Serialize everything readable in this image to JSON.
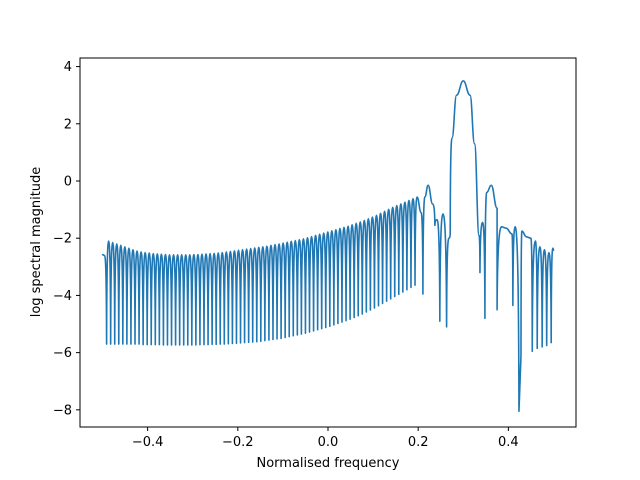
{
  "chart_data": {
    "type": "line",
    "title": "",
    "xlabel": "Normalised frequency",
    "ylabel": "log spectral magnitude",
    "xlim": [
      -0.55,
      0.55
    ],
    "ylim": [
      -8.6,
      4.3
    ],
    "grid": false,
    "x_ticks": [
      -0.4,
      -0.2,
      0.0,
      0.2,
      0.4
    ],
    "x_tick_labels": [
      "−0.4",
      "−0.2",
      "0.0",
      "0.2",
      "0.4"
    ],
    "y_ticks": [
      -8,
      -6,
      -4,
      -2,
      0,
      2,
      4
    ],
    "y_tick_labels": [
      "−8",
      "−6",
      "−4",
      "−2",
      "0",
      "2",
      "4"
    ],
    "series": [
      {
        "color": "#1f77b4",
        "x_range": [
          -0.5,
          0.5
        ],
        "peaks_x": [
          -0.4955,
          -0.4865,
          -0.4775,
          -0.4685,
          -0.4595,
          -0.4505,
          -0.4415,
          -0.4325,
          -0.4235,
          -0.4145,
          -0.4055,
          -0.3965,
          -0.3875,
          -0.3785,
          -0.3695,
          -0.3605,
          -0.3515,
          -0.3425,
          -0.3335,
          -0.3245,
          -0.3155,
          -0.3065,
          -0.2975,
          -0.2885,
          -0.2795,
          -0.2705,
          -0.2615,
          -0.2525,
          -0.2435,
          -0.2345,
          -0.2255,
          -0.2165,
          -0.2075,
          -0.1985,
          -0.1895,
          -0.1805,
          -0.1715,
          -0.1625,
          -0.1535,
          -0.1445,
          -0.1355,
          -0.1265,
          -0.1175,
          -0.1085,
          -0.0995,
          -0.0905,
          -0.0815,
          -0.0725,
          -0.0635,
          -0.0545,
          -0.0455,
          -0.0365,
          -0.0275,
          -0.0185,
          -0.0095,
          -0.0005,
          0.0085,
          0.0175,
          0.0265,
          0.0355,
          0.0445,
          0.0535,
          0.0625,
          0.0715,
          0.0805,
          0.0895,
          0.0985,
          0.1075,
          0.1165,
          0.1255,
          0.1345,
          0.1435,
          0.1525,
          0.1615,
          0.1705,
          0.1795,
          0.1885,
          0.1975,
          0.2065,
          0.215,
          0.222,
          0.232,
          0.242,
          0.255,
          0.268,
          0.275,
          0.285,
          0.3,
          0.315,
          0.325,
          0.335,
          0.343,
          0.352,
          0.362,
          0.375,
          0.385,
          0.395,
          0.408,
          0.415,
          0.43,
          0.44,
          0.45,
          0.46,
          0.47,
          0.48,
          0.49,
          0.4985
        ],
        "peaks_y": [
          -2.6,
          -2.1,
          -2.15,
          -2.2,
          -2.25,
          -2.3,
          -2.35,
          -2.4,
          -2.45,
          -2.48,
          -2.5,
          -2.52,
          -2.54,
          -2.55,
          -2.56,
          -2.57,
          -2.58,
          -2.58,
          -2.58,
          -2.58,
          -2.58,
          -2.58,
          -2.57,
          -2.57,
          -2.56,
          -2.55,
          -2.54,
          -2.53,
          -2.52,
          -2.5,
          -2.48,
          -2.46,
          -2.44,
          -2.42,
          -2.4,
          -2.38,
          -2.36,
          -2.34,
          -2.32,
          -2.3,
          -2.28,
          -2.25,
          -2.22,
          -2.2,
          -2.17,
          -2.14,
          -2.11,
          -2.08,
          -2.05,
          -2.02,
          -1.98,
          -1.94,
          -1.9,
          -1.86,
          -1.82,
          -1.78,
          -1.74,
          -1.7,
          -1.66,
          -1.62,
          -1.58,
          -1.53,
          -1.48,
          -1.43,
          -1.38,
          -1.32,
          -1.26,
          -1.2,
          -1.13,
          -1.06,
          -0.99,
          -0.92,
          -0.86,
          -0.8,
          -0.74,
          -0.68,
          -0.62,
          -0.56,
          -1.1,
          -0.55,
          -0.15,
          -0.8,
          -1.35,
          -1.15,
          -2.0,
          1.5,
          3.0,
          3.5,
          3.0,
          1.3,
          -1.9,
          -1.45,
          -0.4,
          -0.15,
          -0.95,
          -1.6,
          -1.65,
          -1.85,
          -1.6,
          -1.75,
          -1.95,
          -2.0,
          -2.1,
          -2.3,
          -2.4,
          -2.5,
          -2.35
        ],
        "nulls_x": [
          -0.5,
          -0.491,
          -0.482,
          -0.473,
          -0.464,
          -0.455,
          -0.446,
          -0.437,
          -0.428,
          -0.419,
          -0.41,
          -0.401,
          -0.392,
          -0.383,
          -0.374,
          -0.365,
          -0.356,
          -0.347,
          -0.338,
          -0.329,
          -0.32,
          -0.311,
          -0.302,
          -0.293,
          -0.284,
          -0.275,
          -0.266,
          -0.257,
          -0.248,
          -0.239,
          -0.23,
          -0.221,
          -0.212,
          -0.203,
          -0.194,
          -0.185,
          -0.176,
          -0.167,
          -0.158,
          -0.149,
          -0.14,
          -0.131,
          -0.122,
          -0.113,
          -0.104,
          -0.095,
          -0.086,
          -0.077,
          -0.068,
          -0.059,
          -0.05,
          -0.041,
          -0.032,
          -0.023,
          -0.014,
          -0.005,
          0.004,
          0.013,
          0.022,
          0.031,
          0.04,
          0.049,
          0.058,
          0.067,
          0.076,
          0.085,
          0.094,
          0.103,
          0.112,
          0.121,
          0.13,
          0.139,
          0.148,
          0.157,
          0.166,
          0.175,
          0.184,
          0.193,
          0.2105,
          0.237,
          0.248,
          0.263,
          0.271,
          0.337,
          0.348,
          0.375,
          0.41,
          0.4235,
          0.428,
          0.453,
          0.464,
          0.475,
          0.485,
          0.495,
          0.5
        ],
        "nulls_y": [
          -2.55,
          -5.7,
          -5.7,
          -5.7,
          -5.7,
          -5.7,
          -5.7,
          -5.7,
          -5.7,
          -5.7,
          -5.72,
          -5.72,
          -5.72,
          -5.72,
          -5.72,
          -5.73,
          -5.73,
          -5.73,
          -5.73,
          -5.73,
          -5.73,
          -5.73,
          -5.73,
          -5.73,
          -5.72,
          -5.72,
          -5.72,
          -5.71,
          -5.71,
          -5.7,
          -5.7,
          -5.69,
          -5.68,
          -5.67,
          -5.66,
          -5.65,
          -5.64,
          -5.63,
          -5.62,
          -5.6,
          -5.58,
          -5.56,
          -5.54,
          -5.52,
          -5.5,
          -5.47,
          -5.44,
          -5.41,
          -5.38,
          -5.35,
          -5.32,
          -5.28,
          -5.24,
          -5.2,
          -5.16,
          -5.12,
          -5.08,
          -5.03,
          -4.98,
          -4.93,
          -4.88,
          -4.83,
          -4.77,
          -4.71,
          -4.65,
          -4.58,
          -4.51,
          -4.44,
          -4.36,
          -4.28,
          -4.2,
          -4.12,
          -4.04,
          -3.96,
          -3.88,
          -3.8,
          -3.72,
          -3.64,
          -3.95,
          -1.55,
          -4.9,
          -5.1,
          -1.85,
          -3.2,
          -4.8,
          -4.5,
          -4.35,
          -8.05,
          -6.1,
          -5.95,
          -5.85,
          -5.8,
          -5.75,
          -5.65,
          -2.45
        ]
      }
    ]
  }
}
